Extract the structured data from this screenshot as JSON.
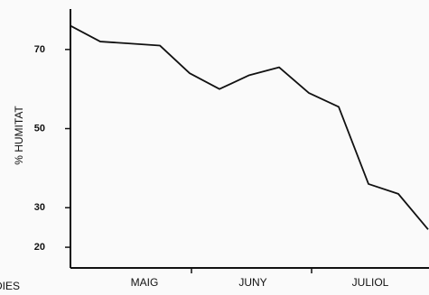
{
  "chart_data": {
    "type": "line",
    "ylabel": "% HUMITAT",
    "xlabel": "DIES",
    "month_labels": [
      "MAIG",
      "JUNY",
      "JULIOL"
    ],
    "series": [
      {
        "color": "#111111",
        "values": [
          76,
          72,
          71.5,
          71,
          64,
          60,
          63.5,
          65.5,
          59,
          55.5,
          36,
          33.5,
          24.5
        ]
      }
    ],
    "ylim": [
      15,
      80
    ],
    "yticks": [
      20,
      30,
      50,
      70
    ]
  }
}
